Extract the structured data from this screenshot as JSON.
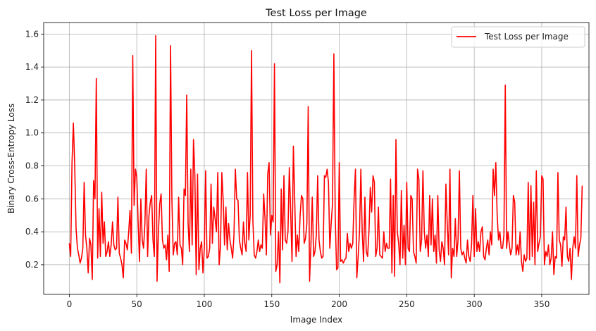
{
  "chart_data": {
    "type": "line",
    "title": "Test Loss per Image",
    "xlabel": "Image Index",
    "ylabel": "Binary Cross-Entropy Loss",
    "xlim": [
      -19,
      385
    ],
    "ylim": [
      0.02,
      1.67
    ],
    "xticks": [
      0,
      50,
      100,
      150,
      200,
      250,
      300,
      350
    ],
    "yticks": [
      0.2,
      0.4,
      0.6,
      0.8,
      1.0,
      1.2,
      1.4,
      1.6
    ],
    "ytick_labels": [
      "0.2",
      "0.4",
      "0.6",
      "0.8",
      "1.0",
      "1.2",
      "1.4",
      "1.6"
    ],
    "grid": true,
    "legend_position": "top-right",
    "series": [
      {
        "name": "Test Loss per Image",
        "color": "#ff0000",
        "y": [
          0.33,
          0.25,
          0.82,
          1.06,
          0.8,
          0.42,
          0.3,
          0.26,
          0.21,
          0.24,
          0.3,
          0.7,
          0.38,
          0.3,
          0.15,
          0.36,
          0.32,
          0.11,
          0.71,
          0.6,
          1.33,
          0.24,
          0.54,
          0.25,
          0.64,
          0.33,
          0.46,
          0.25,
          0.28,
          0.34,
          0.25,
          0.32,
          0.46,
          0.32,
          0.29,
          0.3,
          0.61,
          0.27,
          0.24,
          0.2,
          0.12,
          0.35,
          0.33,
          0.29,
          0.4,
          0.53,
          0.27,
          1.47,
          0.56,
          0.78,
          0.73,
          0.45,
          0.22,
          0.6,
          0.35,
          0.3,
          0.45,
          0.78,
          0.25,
          0.5,
          0.58,
          0.62,
          0.35,
          0.25,
          1.59,
          0.1,
          0.4,
          0.57,
          0.63,
          0.35,
          0.3,
          0.32,
          0.23,
          0.38,
          0.16,
          1.53,
          0.6,
          0.26,
          0.33,
          0.34,
          0.26,
          0.61,
          0.32,
          0.3,
          0.2,
          0.66,
          0.62,
          1.23,
          0.45,
          0.28,
          0.78,
          0.32,
          0.96,
          0.75,
          0.14,
          0.75,
          0.17,
          0.3,
          0.34,
          0.15,
          0.3,
          0.77,
          0.24,
          0.25,
          0.3,
          0.69,
          0.33,
          0.55,
          0.48,
          0.4,
          0.76,
          0.2,
          0.31,
          0.76,
          0.59,
          0.32,
          0.55,
          0.29,
          0.45,
          0.35,
          0.3,
          0.24,
          0.38,
          0.78,
          0.6,
          0.59,
          0.35,
          0.3,
          0.26,
          0.46,
          0.33,
          0.28,
          0.76,
          0.35,
          0.5,
          1.5,
          0.47,
          0.26,
          0.24,
          0.28,
          0.35,
          0.28,
          0.32,
          0.3,
          0.63,
          0.48,
          0.26,
          0.75,
          0.82,
          0.38,
          0.5,
          0.46,
          1.42,
          0.16,
          0.2,
          0.4,
          0.09,
          0.66,
          0.29,
          0.74,
          0.35,
          0.33,
          0.4,
          0.79,
          0.52,
          0.22,
          0.92,
          0.59,
          0.25,
          0.38,
          0.28,
          0.5,
          0.62,
          0.6,
          0.33,
          0.36,
          0.45,
          1.16,
          0.1,
          0.32,
          0.61,
          0.25,
          0.28,
          0.38,
          0.74,
          0.35,
          0.28,
          0.24,
          0.25,
          0.74,
          0.73,
          0.78,
          0.7,
          0.3,
          0.45,
          0.57,
          1.48,
          0.5,
          0.17,
          0.18,
          0.82,
          0.22,
          0.23,
          0.21,
          0.23,
          0.24,
          0.39,
          0.28,
          0.33,
          0.3,
          0.33,
          0.6,
          0.78,
          0.12,
          0.25,
          0.4,
          0.78,
          0.4,
          0.22,
          0.61,
          0.28,
          0.25,
          0.4,
          0.67,
          0.52,
          0.74,
          0.7,
          0.25,
          0.3,
          0.55,
          0.26,
          0.25,
          0.24,
          0.4,
          0.28,
          0.33,
          0.3,
          0.3,
          0.72,
          0.15,
          0.62,
          0.13,
          0.96,
          0.4,
          0.33,
          0.2,
          0.65,
          0.24,
          0.44,
          0.2,
          0.7,
          0.3,
          0.28,
          0.62,
          0.6,
          0.28,
          0.25,
          0.21,
          0.78,
          0.72,
          0.28,
          0.35,
          0.77,
          0.4,
          0.3,
          0.38,
          0.25,
          0.62,
          0.32,
          0.6,
          0.28,
          0.38,
          0.21,
          0.62,
          0.29,
          0.22,
          0.34,
          0.3,
          0.2,
          0.69,
          0.45,
          0.26,
          0.78,
          0.12,
          0.3,
          0.25,
          0.48,
          0.25,
          0.35,
          0.77,
          0.3,
          0.26,
          0.28,
          0.24,
          0.21,
          0.35,
          0.25,
          0.22,
          0.32,
          0.62,
          0.25,
          0.54,
          0.28,
          0.34,
          0.28,
          0.4,
          0.43,
          0.25,
          0.23,
          0.3,
          0.35,
          0.26,
          0.4,
          0.32,
          0.78,
          0.62,
          0.82,
          0.5,
          0.35,
          0.4,
          0.3,
          0.3,
          0.38,
          1.29,
          0.3,
          0.4,
          0.32,
          0.26,
          0.3,
          0.62,
          0.58,
          0.26,
          0.32,
          0.26,
          0.4,
          0.22,
          0.16,
          0.26,
          0.22,
          0.24,
          0.7,
          0.23,
          0.68,
          0.25,
          0.58,
          0.2,
          0.77,
          0.28,
          0.33,
          0.37,
          0.74,
          0.72,
          0.2,
          0.28,
          0.25,
          0.32,
          0.2,
          0.24,
          0.4,
          0.14,
          0.25,
          0.24,
          0.76,
          0.35,
          0.32,
          0.19,
          0.37,
          0.35,
          0.55,
          0.25,
          0.22,
          0.3,
          0.11,
          0.3,
          0.37,
          0.3,
          0.74,
          0.25,
          0.32,
          0.36,
          0.68
        ]
      }
    ]
  }
}
